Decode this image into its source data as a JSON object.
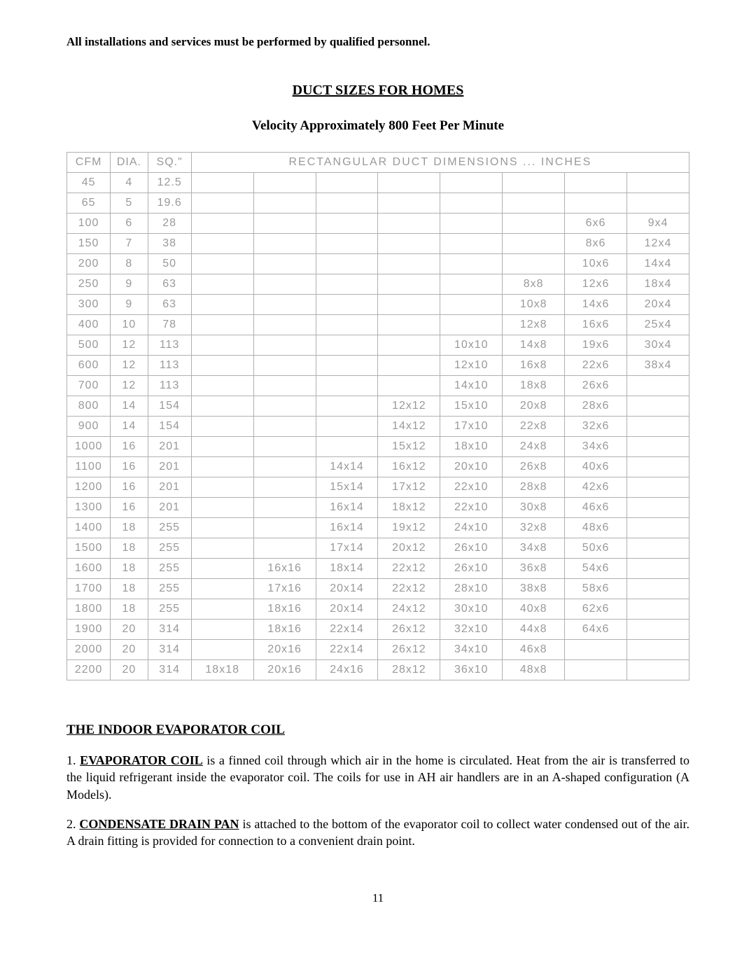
{
  "topnote": "All installations and services must be performed by qualified personnel.",
  "title": "DUCT SIZES FOR HOMES",
  "subtitle": "Velocity Approximately 800 Feet Per Minute",
  "table": {
    "head": {
      "cfm": "CFM",
      "dia": "DIA.",
      "sq": "SQ.\"",
      "rect": "RECTANGULAR  DUCT  DIMENSIONS  ...  INCHES"
    },
    "rows": [
      {
        "cfm": "45",
        "dia": "4",
        "sq": "12.5",
        "r": [
          "",
          "",
          "",
          "",
          "",
          "",
          "",
          ""
        ]
      },
      {
        "cfm": "65",
        "dia": "5",
        "sq": "19.6",
        "r": [
          "",
          "",
          "",
          "",
          "",
          "",
          "",
          ""
        ]
      },
      {
        "cfm": "100",
        "dia": "6",
        "sq": "28",
        "r": [
          "",
          "",
          "",
          "",
          "",
          "",
          "6x6",
          "9x4"
        ]
      },
      {
        "cfm": "150",
        "dia": "7",
        "sq": "38",
        "r": [
          "",
          "",
          "",
          "",
          "",
          "",
          "8x6",
          "12x4"
        ]
      },
      {
        "cfm": "200",
        "dia": "8",
        "sq": "50",
        "r": [
          "",
          "",
          "",
          "",
          "",
          "",
          "10x6",
          "14x4"
        ]
      },
      {
        "cfm": "250",
        "dia": "9",
        "sq": "63",
        "r": [
          "",
          "",
          "",
          "",
          "",
          "8x8",
          "12x6",
          "18x4"
        ]
      },
      {
        "cfm": "300",
        "dia": "9",
        "sq": "63",
        "r": [
          "",
          "",
          "",
          "",
          "",
          "10x8",
          "14x6",
          "20x4"
        ]
      },
      {
        "cfm": "400",
        "dia": "10",
        "sq": "78",
        "r": [
          "",
          "",
          "",
          "",
          "",
          "12x8",
          "16x6",
          "25x4"
        ]
      },
      {
        "cfm": "500",
        "dia": "12",
        "sq": "113",
        "r": [
          "",
          "",
          "",
          "",
          "10x10",
          "14x8",
          "19x6",
          "30x4"
        ]
      },
      {
        "cfm": "600",
        "dia": "12",
        "sq": "113",
        "r": [
          "",
          "",
          "",
          "",
          "12x10",
          "16x8",
          "22x6",
          "38x4"
        ]
      },
      {
        "cfm": "700",
        "dia": "12",
        "sq": "113",
        "r": [
          "",
          "",
          "",
          "",
          "14x10",
          "18x8",
          "26x6",
          ""
        ]
      },
      {
        "cfm": "800",
        "dia": "14",
        "sq": "154",
        "r": [
          "",
          "",
          "",
          "12x12",
          "15x10",
          "20x8",
          "28x6",
          ""
        ]
      },
      {
        "cfm": "900",
        "dia": "14",
        "sq": "154",
        "r": [
          "",
          "",
          "",
          "14x12",
          "17x10",
          "22x8",
          "32x6",
          ""
        ]
      },
      {
        "cfm": "1000",
        "dia": "16",
        "sq": "201",
        "r": [
          "",
          "",
          "",
          "15x12",
          "18x10",
          "24x8",
          "34x6",
          ""
        ]
      },
      {
        "cfm": "1100",
        "dia": "16",
        "sq": "201",
        "r": [
          "",
          "",
          "14x14",
          "16x12",
          "20x10",
          "26x8",
          "40x6",
          ""
        ]
      },
      {
        "cfm": "1200",
        "dia": "16",
        "sq": "201",
        "r": [
          "",
          "",
          "15x14",
          "17x12",
          "22x10",
          "28x8",
          "42x6",
          ""
        ]
      },
      {
        "cfm": "1300",
        "dia": "16",
        "sq": "201",
        "r": [
          "",
          "",
          "16x14",
          "18x12",
          "22x10",
          "30x8",
          "46x6",
          ""
        ]
      },
      {
        "cfm": "1400",
        "dia": "18",
        "sq": "255",
        "r": [
          "",
          "",
          "16x14",
          "19x12",
          "24x10",
          "32x8",
          "48x6",
          ""
        ]
      },
      {
        "cfm": "1500",
        "dia": "18",
        "sq": "255",
        "r": [
          "",
          "",
          "17x14",
          "20x12",
          "26x10",
          "34x8",
          "50x6",
          ""
        ]
      },
      {
        "cfm": "1600",
        "dia": "18",
        "sq": "255",
        "r": [
          "",
          "16x16",
          "18x14",
          "22x12",
          "26x10",
          "36x8",
          "54x6",
          ""
        ]
      },
      {
        "cfm": "1700",
        "dia": "18",
        "sq": "255",
        "r": [
          "",
          "17x16",
          "20x14",
          "22x12",
          "28x10",
          "38x8",
          "58x6",
          ""
        ]
      },
      {
        "cfm": "1800",
        "dia": "18",
        "sq": "255",
        "r": [
          "",
          "18x16",
          "20x14",
          "24x12",
          "30x10",
          "40x8",
          "62x6",
          ""
        ]
      },
      {
        "cfm": "1900",
        "dia": "20",
        "sq": "314",
        "r": [
          "",
          "18x16",
          "22x14",
          "26x12",
          "32x10",
          "44x8",
          "64x6",
          ""
        ]
      },
      {
        "cfm": "2000",
        "dia": "20",
        "sq": "314",
        "r": [
          "",
          "20x16",
          "22x14",
          "26x12",
          "34x10",
          "46x8",
          "",
          ""
        ]
      },
      {
        "cfm": "2200",
        "dia": "20",
        "sq": "314",
        "r": [
          "18x18",
          "20x16",
          "24x16",
          "28x12",
          "36x10",
          "48x8",
          "",
          ""
        ]
      }
    ],
    "font_color": "#999999",
    "border_color": "#b0b0b0"
  },
  "section": {
    "title": "THE INDOOR EVAPORATOR COIL",
    "items": [
      {
        "num": "1.",
        "lead": "EVAPORATOR COIL",
        "text": " is a finned coil through which air in the home is circulated. Heat from the air is transferred to the liquid refrigerant inside the evaporator coil. The coils for use in AH air handlers are in an A-shaped configuration (A Models)."
      },
      {
        "num": "2.",
        "lead": "CONDENSATE DRAIN PAN",
        "text": " is attached to the bottom of the evaporator coil to collect water condensed out of the air. A drain fitting is provided for connection to a convenient drain point."
      }
    ]
  },
  "pagenum": "11"
}
